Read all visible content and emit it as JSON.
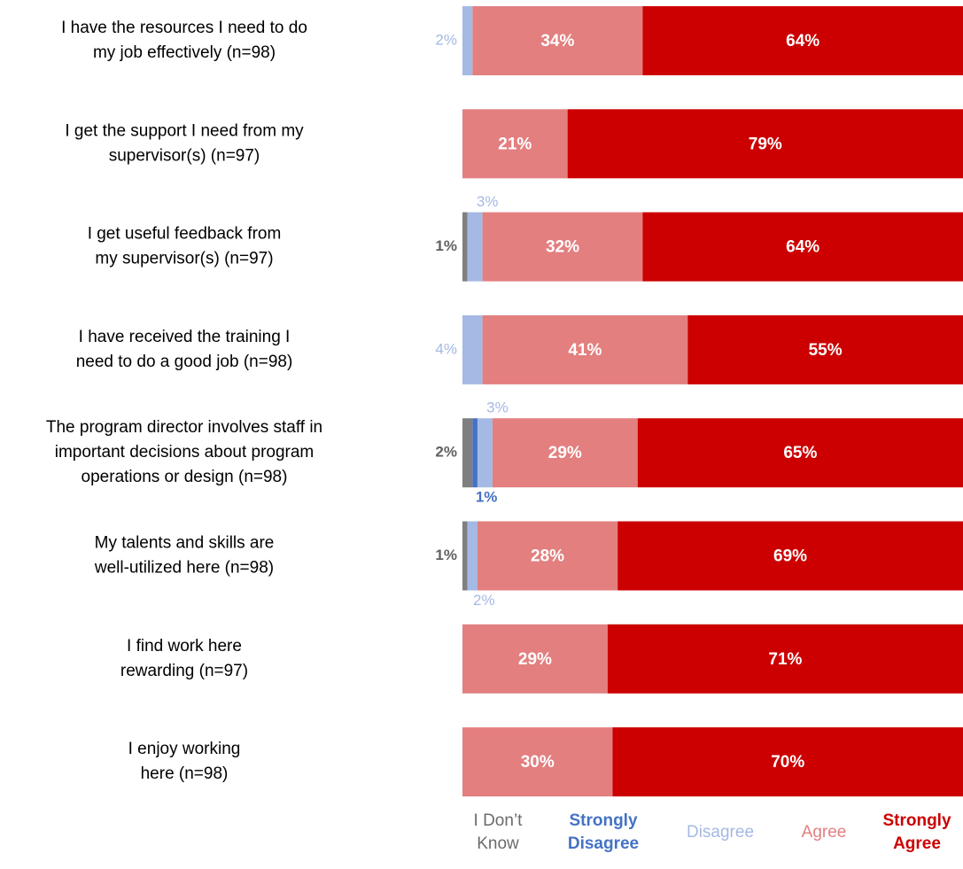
{
  "chart_data": {
    "type": "bar",
    "orientation": "horizontal",
    "stacked": true,
    "xlim": [
      0,
      100
    ],
    "grid": false,
    "legend_position": "bottom",
    "series": [
      {
        "name": "I Don’t Know",
        "name_lines": [
          "I Don’t",
          "Know"
        ],
        "color": "#7f7f7f",
        "values": [
          0,
          0,
          1,
          0,
          2,
          1,
          0,
          0
        ]
      },
      {
        "name": "Strongly Disagree",
        "name_lines": [
          "Strongly",
          "Disagree"
        ],
        "color": "#4472c4",
        "values": [
          0,
          0,
          0,
          0,
          1,
          0,
          0,
          0
        ]
      },
      {
        "name": "Disagree",
        "name_lines": [
          "Disagree"
        ],
        "color": "#a4b9e3",
        "values": [
          2,
          0,
          3,
          4,
          3,
          2,
          0,
          0
        ]
      },
      {
        "name": "Agree",
        "name_lines": [
          "Agree"
        ],
        "color": "#e37f7f",
        "values": [
          34,
          21,
          32,
          41,
          29,
          28,
          29,
          30
        ]
      },
      {
        "name": "Strongly Agree",
        "name_lines": [
          "Strongly",
          "Agree"
        ],
        "color": "#cc0000",
        "values": [
          64,
          79,
          64,
          55,
          65,
          69,
          71,
          70
        ]
      }
    ],
    "categories": [
      {
        "label": "I have the resources I need to do my job effectively (n=98)",
        "lines": [
          "I have the resources I need to do",
          "my job effectively (n=98)"
        ]
      },
      {
        "label": "I get the support I need from my supervisor(s) (n=97)",
        "lines": [
          "I get the support I need from my",
          "supervisor(s) (n=97)"
        ]
      },
      {
        "label": "I get useful feedback from my supervisor(s) (n=97)",
        "lines": [
          "I get useful feedback from",
          "my supervisor(s) (n=97)"
        ]
      },
      {
        "label": "I have received the training I need to do a good job (n=98)",
        "lines": [
          "I have received the training I",
          "need to do a good job (n=98)"
        ]
      },
      {
        "label": "The program director involves staff in important decisions about program operations or design (n=98)",
        "lines": [
          "The program director involves staff in",
          "important decisions about program",
          "operations or design (n=98)"
        ]
      },
      {
        "label": "My talents and skills are well-utilized here (n=98)",
        "lines": [
          "My talents and skills are",
          "well-utilized here (n=98)"
        ]
      },
      {
        "label": "I find work here rewarding (n=97)",
        "lines": [
          "I find work here",
          "rewarding (n=97)"
        ]
      },
      {
        "label": "I enjoy working here (n=98)",
        "lines": [
          "I enjoy working",
          "here (n=98)"
        ]
      }
    ],
    "segment_labels": [
      [
        {
          "series": 3,
          "text": "34%"
        },
        {
          "series": 4,
          "text": "64%"
        }
      ],
      [
        {
          "series": 3,
          "text": "21%"
        },
        {
          "series": 4,
          "text": "79%"
        }
      ],
      [
        {
          "series": 3,
          "text": "32%"
        },
        {
          "series": 4,
          "text": "64%"
        }
      ],
      [
        {
          "series": 3,
          "text": "41%"
        },
        {
          "series": 4,
          "text": "55%"
        }
      ],
      [
        {
          "series": 3,
          "text": "29%"
        },
        {
          "series": 4,
          "text": "65%"
        }
      ],
      [
        {
          "series": 3,
          "text": "28%"
        },
        {
          "series": 4,
          "text": "69%"
        }
      ],
      [
        {
          "series": 3,
          "text": "29%"
        },
        {
          "series": 4,
          "text": "71%"
        }
      ],
      [
        {
          "series": 3,
          "text": "30%"
        },
        {
          "series": 4,
          "text": "70%"
        }
      ]
    ],
    "outside_labels": [
      {
        "row": 0,
        "series": 2,
        "text": "2%",
        "place": "left"
      },
      {
        "row": 2,
        "series": 2,
        "text": "3%",
        "place": "above"
      },
      {
        "row": 2,
        "series": 0,
        "text": "1%",
        "place": "left"
      },
      {
        "row": 3,
        "series": 2,
        "text": "4%",
        "place": "left"
      },
      {
        "row": 4,
        "series": 2,
        "text": "3%",
        "place": "above"
      },
      {
        "row": 4,
        "series": 0,
        "text": "2%",
        "place": "left"
      },
      {
        "row": 4,
        "series": 1,
        "text": "1%",
        "place": "below"
      },
      {
        "row": 5,
        "series": 0,
        "text": "1%",
        "place": "left"
      },
      {
        "row": 5,
        "series": 2,
        "text": "2%",
        "place": "below"
      }
    ]
  }
}
